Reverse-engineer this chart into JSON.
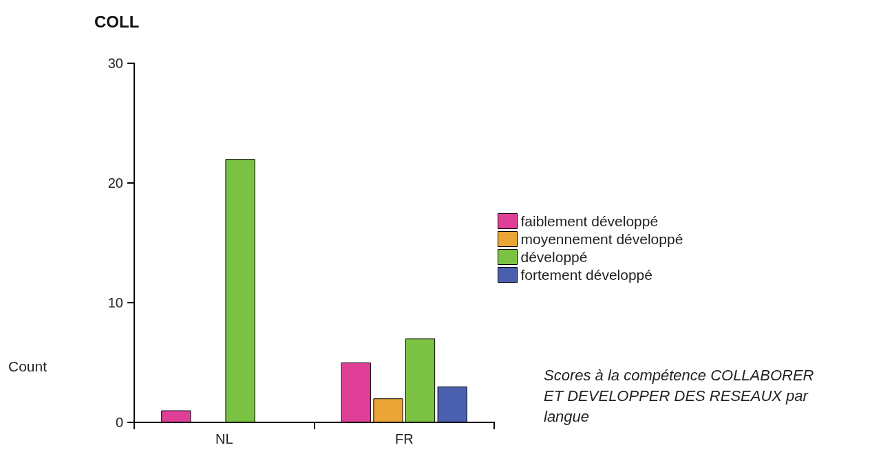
{
  "chart_data": {
    "type": "bar",
    "title": "COLL",
    "ylabel": "Count",
    "categories": [
      "NL",
      "FR"
    ],
    "series": [
      {
        "name": "faiblement développé",
        "color": "#df3f97",
        "values": [
          1,
          5
        ]
      },
      {
        "name": "moyennement développé",
        "color": "#eba436",
        "values": [
          null,
          2
        ]
      },
      {
        "name": "développé",
        "color": "#7cc242",
        "values": [
          22,
          7
        ]
      },
      {
        "name": "fortement développé",
        "color": "#4a5fae",
        "values": [
          null,
          3
        ]
      }
    ],
    "ylim": [
      0,
      30
    ],
    "yticks": [
      0,
      10,
      20,
      30
    ],
    "grid": false,
    "legend": "right",
    "annotations": [
      "Scores à la compétence COLLABORER ET DEVELOPPER DES RESEAUX par langue"
    ]
  }
}
